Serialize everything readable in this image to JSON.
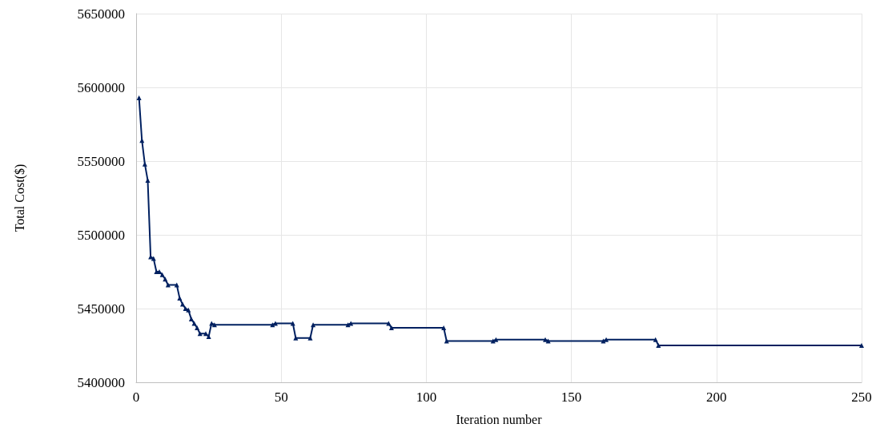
{
  "chart_data": {
    "type": "line",
    "xlabel": "Iteration number",
    "ylabel": "Total Cost($)",
    "xlim": [
      0,
      250
    ],
    "xticks": [
      0,
      50,
      100,
      150,
      200,
      250
    ],
    "ylim": [
      5400000,
      5650000
    ],
    "yticks": [
      5400000,
      5450000,
      5500000,
      5550000,
      5600000,
      5650000
    ],
    "grid": true,
    "marker": "triangle",
    "line_style": "solid",
    "series": [
      {
        "color": "#002060",
        "x": [
          1,
          2,
          3,
          4,
          5,
          6,
          7,
          8,
          9,
          10,
          11,
          14,
          15,
          16,
          17,
          18,
          19,
          20,
          21,
          22,
          24,
          25,
          26,
          27,
          47,
          48,
          54,
          55,
          60,
          61,
          73,
          74,
          87,
          88,
          106,
          107,
          123,
          124,
          141,
          142,
          161,
          162,
          179,
          180,
          250
        ],
        "values": [
          5593000,
          5564000,
          5548000,
          5537000,
          5485000,
          5484000,
          5475000,
          5475000,
          5473000,
          5470000,
          5466000,
          5466000,
          5457000,
          5453000,
          5450000,
          5449000,
          5443000,
          5440000,
          5437000,
          5433000,
          5433000,
          5431000,
          5440000,
          5439000,
          5439000,
          5440000,
          5440000,
          5430000,
          5430000,
          5439000,
          5439000,
          5440000,
          5440000,
          5437000,
          5437000,
          5428000,
          5428000,
          5429000,
          5429000,
          5428000,
          5428000,
          5429000,
          5429000,
          5425000,
          5425000
        ]
      }
    ]
  }
}
